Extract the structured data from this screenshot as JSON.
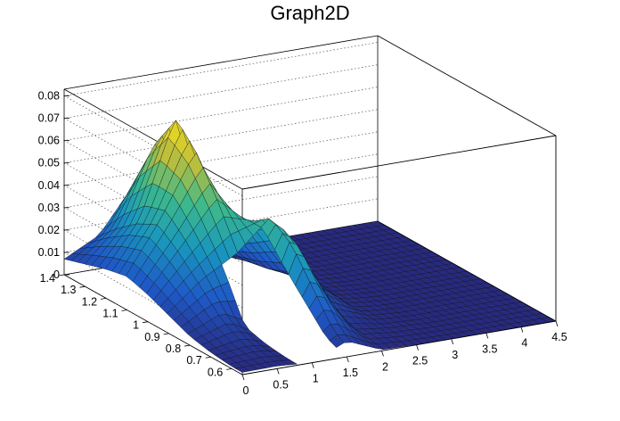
{
  "chart_data": {
    "type": "surface",
    "title": "Graph2D",
    "xlabel": "",
    "ylabel": "",
    "zlabel": "",
    "xlim": [
      0,
      4.5
    ],
    "ylim": [
      0.55,
      1.4
    ],
    "zlim": [
      0,
      0.083
    ],
    "x_ticks": [
      "0",
      "0.5",
      "1",
      "1.5",
      "2",
      "2.5",
      "3",
      "3.5",
      "4",
      "4.5"
    ],
    "y_ticks": [
      "0.6",
      "0.7",
      "0.8",
      "0.9",
      "1",
      "1.1",
      "1.2",
      "1.3",
      "1.4"
    ],
    "z_ticks": [
      "0",
      "0.01",
      "0.02",
      "0.03",
      "0.04",
      "0.05",
      "0.06",
      "0.07",
      "0.08"
    ],
    "grid": true,
    "colormap": "parula",
    "colors": {
      "low": "#282a80",
      "mid": "#1f9fb0",
      "high": "#f5e020"
    },
    "gap_region": {
      "x": [
        0.75,
        1.3
      ],
      "y": [
        0.55,
        0.9
      ],
      "z": 0
    },
    "surface": {
      "x": [
        0,
        0.5,
        1,
        1.5,
        2,
        2.5,
        3,
        3.5,
        4,
        4.5
      ],
      "y": [
        0.55,
        0.6,
        0.7,
        0.8,
        0.9,
        1.0,
        1.1,
        1.2,
        1.3,
        1.4
      ],
      "z": [
        [
          0.001,
          0.0012,
          0.0,
          0.007,
          0.0005,
          0.0002,
          0.0,
          0.0,
          0.0,
          0.0
        ],
        [
          0.001,
          0.0015,
          0.0,
          0.01,
          0.0015,
          0.0004,
          0.0,
          0.0,
          0.0,
          0.0
        ],
        [
          0.002,
          0.004,
          0.0,
          0.025,
          0.003,
          0.0008,
          0.0,
          0.0,
          0.0,
          0.0
        ],
        [
          0.004,
          0.01,
          0.0,
          0.04,
          0.008,
          0.0012,
          0.0,
          0.0,
          0.0,
          0.0
        ],
        [
          0.008,
          0.02,
          0.028,
          0.045,
          0.015,
          0.0015,
          0.0,
          0.0,
          0.0,
          0.0
        ],
        [
          0.012,
          0.03,
          0.048,
          0.036,
          0.012,
          0.0015,
          0.0,
          0.0,
          0.0,
          0.0
        ],
        [
          0.015,
          0.038,
          0.065,
          0.028,
          0.008,
          0.001,
          0.0,
          0.0,
          0.0,
          0.0
        ],
        [
          0.013,
          0.033,
          0.076,
          0.02,
          0.006,
          0.0005,
          0.0,
          0.0,
          0.0,
          0.0
        ],
        [
          0.01,
          0.025,
          0.06,
          0.012,
          0.003,
          0.0002,
          0.0,
          0.0,
          0.0,
          0.0
        ],
        [
          0.007,
          0.015,
          0.035,
          0.006,
          0.001,
          0.0,
          0.0,
          0.0,
          0.0,
          0.0
        ]
      ]
    }
  }
}
